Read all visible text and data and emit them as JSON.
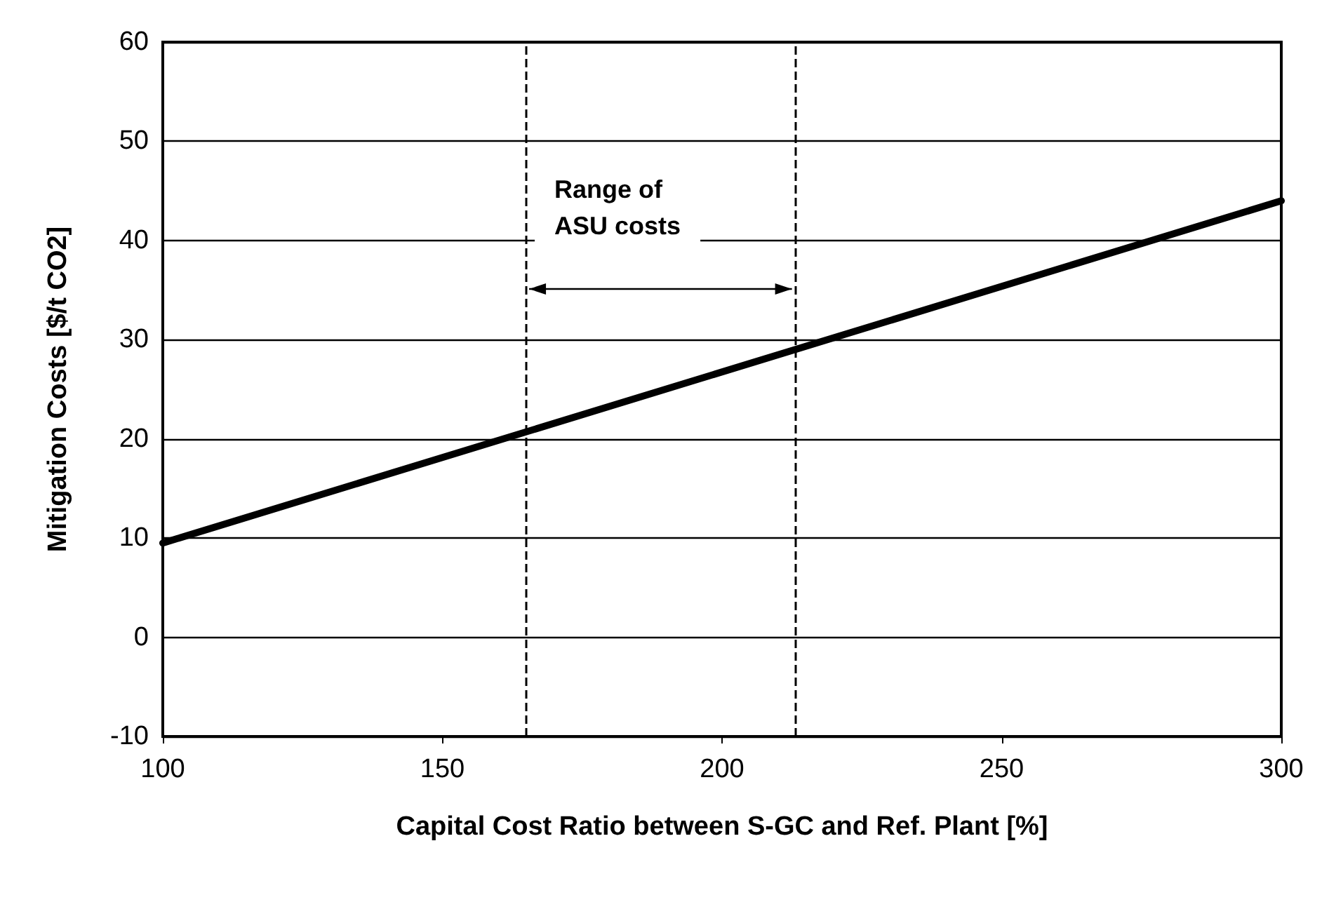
{
  "chart_data": {
    "type": "line",
    "xlabel": "Capital Cost Ratio between S-GC and Ref. Plant [%]",
    "ylabel": "Mitigation Costs [$/t CO2]",
    "x": [
      100,
      300
    ],
    "series": [
      {
        "color": "#000000",
        "values": [
          9.5,
          44
        ]
      }
    ],
    "xlim": [
      100,
      300
    ],
    "xticks": [
      100,
      150,
      200,
      250,
      300
    ],
    "ylim": [
      -10,
      60
    ],
    "yticks": [
      -10,
      0,
      10,
      20,
      30,
      40,
      50,
      60
    ],
    "grid": "y",
    "marker": "none",
    "line_style": "solid",
    "ref_lines": [
      {
        "axis": "x",
        "value": 165,
        "color": "#000000",
        "line_style": "dashed"
      },
      {
        "axis": "x",
        "value": 213,
        "color": "#000000",
        "line_style": "dashed"
      }
    ],
    "annotations": [
      "Range of\nASU costs"
    ]
  }
}
